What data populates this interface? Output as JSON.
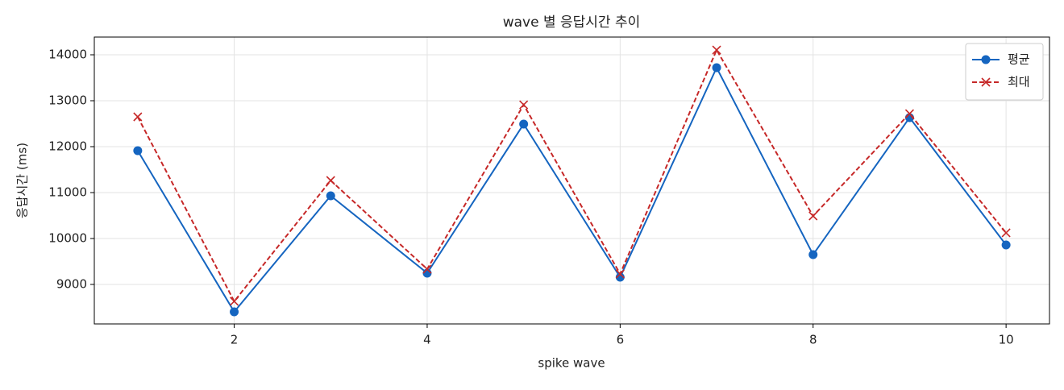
{
  "chart_data": {
    "type": "line",
    "title": "wave 별 응답시간 추이",
    "xlabel": "spike wave",
    "ylabel": "응답시간 (ms)",
    "x": [
      1,
      2,
      3,
      4,
      5,
      6,
      7,
      8,
      9,
      10
    ],
    "series": [
      {
        "name": "평균",
        "color": "#1565c0",
        "marker": "o",
        "linestyle": "solid",
        "values": [
          11912,
          8404,
          10930,
          9246,
          12491,
          9158,
          13719,
          9649,
          12632,
          9860
        ]
      },
      {
        "name": "최대",
        "color": "#c62828",
        "marker": "x",
        "linestyle": "dashed",
        "values": [
          12649,
          8632,
          11263,
          9333,
          12912,
          9228,
          14105,
          10491,
          12719,
          10123
        ]
      }
    ],
    "xlim": [
      0.55,
      10.45
    ],
    "xticks": [
      2,
      4,
      6,
      8,
      10
    ],
    "ylim": [
      8140,
      14386
    ],
    "yticks": [
      9000,
      10000,
      11000,
      12000,
      13000,
      14000
    ],
    "grid": true,
    "legend": "upper right"
  }
}
